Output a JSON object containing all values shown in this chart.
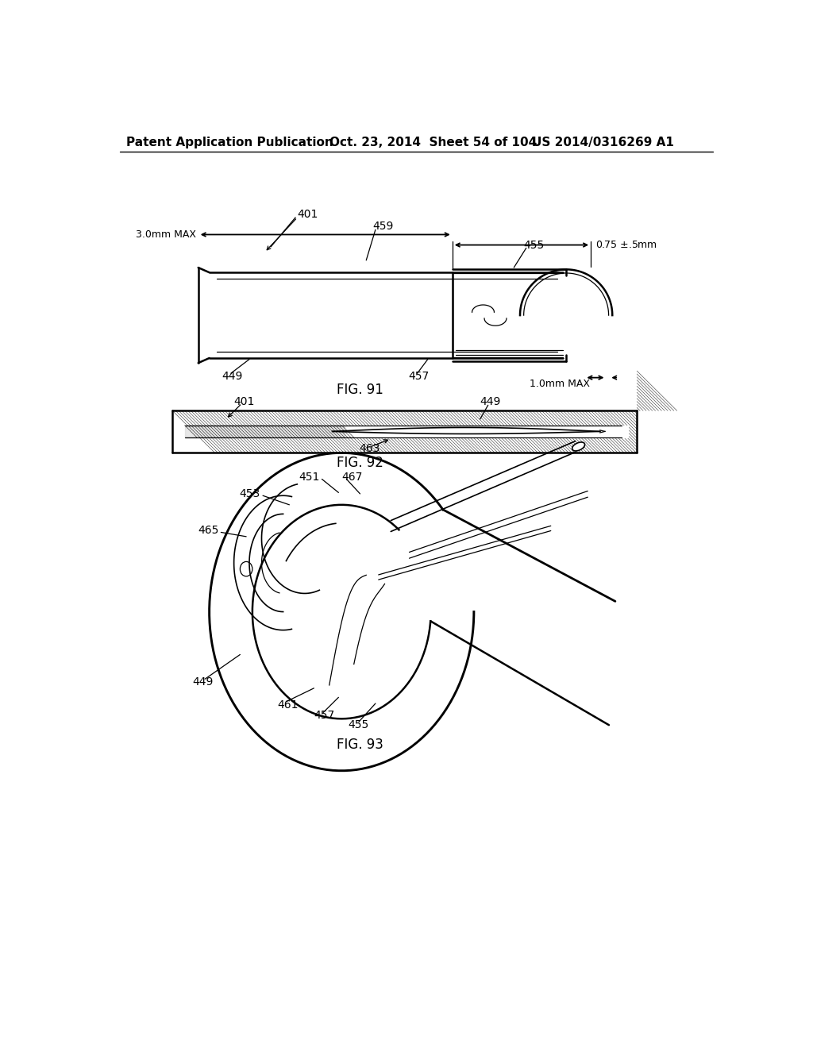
{
  "header_left": "Patent Application Publication",
  "header_mid": "Oct. 23, 2014  Sheet 54 of 104",
  "header_right": "US 2014/0316269 A1",
  "fig91_label": "FIG. 91",
  "fig92_label": "FIG. 92",
  "fig93_label": "FIG. 93",
  "bg_color": "#ffffff",
  "line_color": "#000000",
  "font_size_header": 11,
  "font_size_label": 12,
  "font_size_ref": 10
}
